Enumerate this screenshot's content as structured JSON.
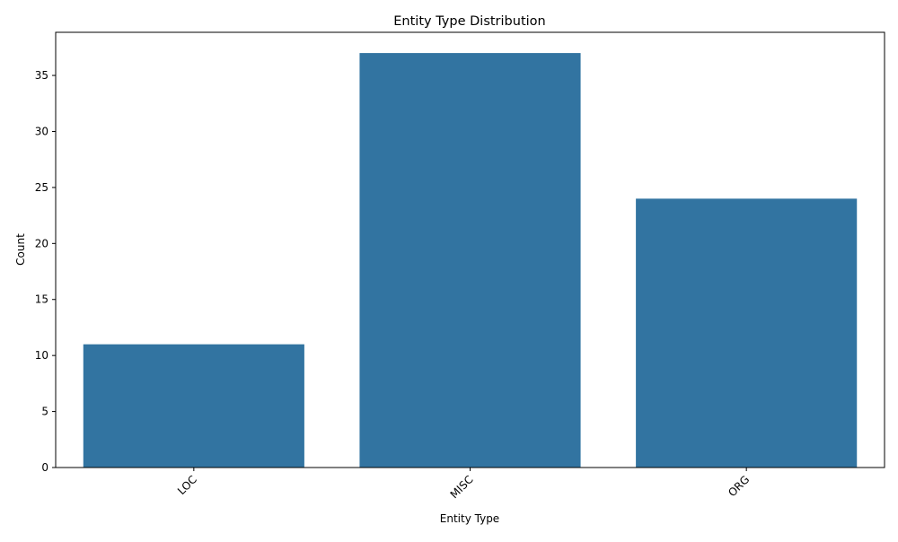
{
  "chart_data": {
    "type": "bar",
    "title": "Entity Type Distribution",
    "xlabel": "Entity Type",
    "ylabel": "Count",
    "categories": [
      "LOC",
      "MISC",
      "ORG"
    ],
    "values": [
      11,
      37,
      24
    ],
    "ylim": [
      0,
      38.85
    ],
    "yticks": [
      0,
      5,
      10,
      15,
      20,
      25,
      30,
      35
    ],
    "bar_color": "#3274a1",
    "grid": false,
    "xtick_rotation_deg": 45
  }
}
